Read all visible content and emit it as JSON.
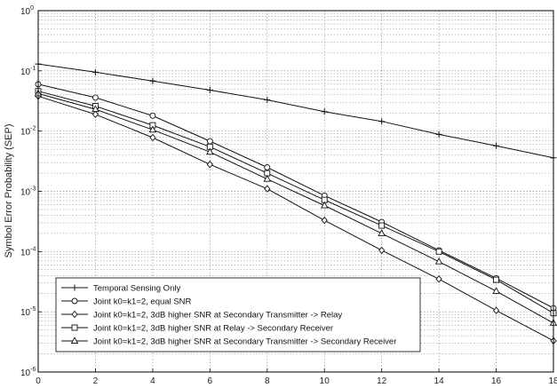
{
  "chart_data": {
    "type": "line",
    "title": "",
    "xlabel": "",
    "ylabel": "Symbol Error Probability (SEP)",
    "yscale": "log",
    "xlim": [
      0,
      18
    ],
    "ylim": [
      1e-06,
      1
    ],
    "grid": true,
    "legend_position": "bottom-left",
    "x_ticks": [
      "0",
      "2",
      "4",
      "6",
      "8",
      "10",
      "12",
      "14",
      "16",
      "18"
    ],
    "y_ticks": [
      {
        "base": "10",
        "exp": "-6"
      },
      {
        "base": "10",
        "exp": "-5"
      },
      {
        "base": "10",
        "exp": "-4"
      },
      {
        "base": "10",
        "exp": "-3"
      },
      {
        "base": "10",
        "exp": "-2"
      },
      {
        "base": "10",
        "exp": "-1"
      },
      {
        "base": "10",
        "exp": "0"
      }
    ],
    "x": [
      0,
      2,
      4,
      6,
      8,
      10,
      12,
      14,
      16,
      18
    ],
    "series": [
      {
        "name": "Temporal Sensing Only",
        "marker": "plus",
        "values": [
          0.13,
          0.095,
          0.068,
          0.048,
          0.033,
          0.021,
          0.0145,
          0.0088,
          0.0057,
          0.0036
        ]
      },
      {
        "name": "Joint k0=k1=2, equal SNR",
        "marker": "circle",
        "values": [
          0.06,
          0.036,
          0.018,
          0.0068,
          0.0025,
          0.00085,
          0.00031,
          0.000105,
          3.6e-05,
          1.15e-05
        ]
      },
      {
        "name": "Joint k0=k1=2, 3dB higher SNR at Secondary Transmitter -> Relay",
        "marker": "diamond",
        "values": [
          0.038,
          0.019,
          0.0078,
          0.0028,
          0.0011,
          0.00033,
          0.000105,
          3.5e-05,
          1.05e-05,
          3.3e-06
        ]
      },
      {
        "name": "Joint k0=k1=2, 3dB higher SNR at Relay -> Secondary Receiver",
        "marker": "square",
        "values": [
          0.046,
          0.026,
          0.0125,
          0.0055,
          0.002,
          0.00072,
          0.00027,
          0.0001,
          3.4e-05,
          9.5e-06
        ]
      },
      {
        "name": "Joint k0=k1=2, 3dB higher SNR at Secondary Transmitter -> Secondary Receiver",
        "marker": "triangle",
        "values": [
          0.042,
          0.023,
          0.0105,
          0.0045,
          0.0016,
          0.00058,
          0.0002,
          6.8e-05,
          2.2e-05,
          6.5e-06
        ]
      }
    ],
    "colors": {
      "line": "#111111",
      "grid": "#8a8a8a",
      "axis": "#000000"
    }
  }
}
